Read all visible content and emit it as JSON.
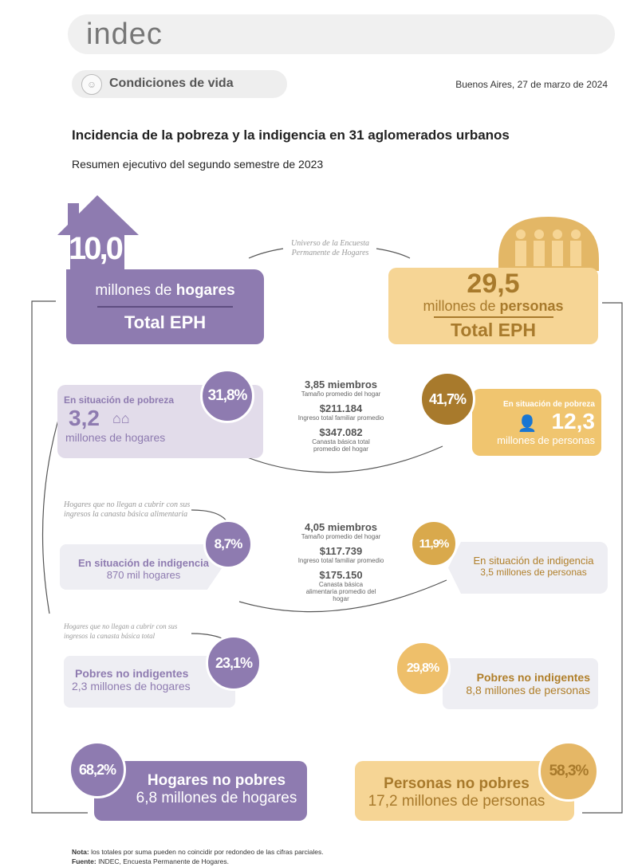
{
  "header": {
    "logo": "indec",
    "section": "Condiciones de vida",
    "date": "Buenos Aires, 27 de marzo de 2024"
  },
  "title": "Incidencia de la pobreza y la indigencia en 31 aglomerados urbanos",
  "subtitle": "Resumen ejecutivo del segundo semestre de 2023",
  "universe_note": "Universo de la Encuesta Permanente de Hogares",
  "hogares": {
    "total": "10,0",
    "unit_pre": "millones de ",
    "unit_bold": "hogares",
    "label": "Total EPH",
    "pobreza": {
      "label": "En situación de pobreza",
      "pct": "31,8%",
      "value": "3,2",
      "unit": "millones de hogares"
    },
    "indigencia_note": "Hogares que no llegan a cubrir con sus ingresos la canasta básica alimentaria",
    "indigencia": {
      "label": "En situación de indigencia",
      "pct": "8,7%",
      "value": "870 mil hogares"
    },
    "no_indig_note": "Hogares que no llegan a cubrir con sus ingresos la canasta básica total",
    "pobres_no_indigentes": {
      "label": "Pobres no indigentes",
      "pct": "23,1%",
      "value": "2,3 millones de hogares"
    },
    "no_pobres": {
      "label": "Hogares no pobres",
      "pct": "68,2%",
      "value": "6,8 millones de hogares"
    }
  },
  "personas": {
    "total": "29,5",
    "unit_pre": "millones de ",
    "unit_bold": "personas",
    "label": "Total EPH",
    "pobreza": {
      "label": "En situación de pobreza",
      "pct": "41,7%",
      "value": "12,3",
      "unit": "millones de personas"
    },
    "indigencia": {
      "label": "En situación de indigencia",
      "pct": "11,9%",
      "value": "3,5 millones de personas"
    },
    "pobres_no_indigentes": {
      "label": "Pobres no indigentes",
      "pct": "29,8%",
      "value": "8,8 millones de personas"
    },
    "no_pobres": {
      "label": "Personas no pobres",
      "pct": "58,3%",
      "value": "17,2 millones de personas"
    }
  },
  "pobreza_stats": [
    {
      "v": "3,85 miembros",
      "l": "Tamaño promedio del hogar"
    },
    {
      "v": "$211.184",
      "l": "Ingreso total familiar promedio"
    },
    {
      "v": "$347.082",
      "l": "Canasta básica total promedio del hogar"
    }
  ],
  "indigencia_stats": [
    {
      "v": "4,05 miembros",
      "l": "Tamaño promedio del hogar"
    },
    {
      "v": "$117.739",
      "l": "Ingreso total familiar promedio"
    },
    {
      "v": "$175.150",
      "l": "Canasta básica alimentaria promedio del hogar"
    }
  ],
  "footer": {
    "nota_label": "Nota:",
    "nota": " los totales por suma pueden no coincidir por redondeo de las cifras parciales.",
    "fuente_label": "Fuente:",
    "fuente": " INDEC, Encuesta Permanente de Hogares."
  },
  "colors": {
    "purple": "#8e7bb0",
    "gold": "#f6d595",
    "brown": "#a87a2c",
    "lavender": "#e2dcea"
  }
}
